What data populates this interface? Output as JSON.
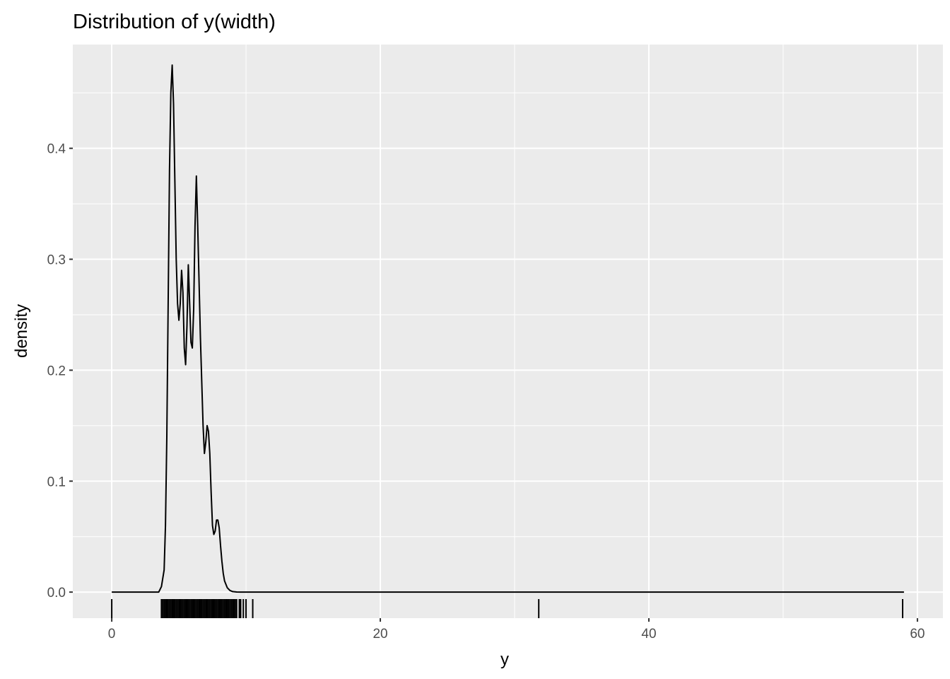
{
  "chart_data": {
    "type": "area",
    "title": "Distribution of y(width)",
    "xlabel": "y",
    "ylabel": "density",
    "xlim": [
      -2.9,
      61.9
    ],
    "ylim": [
      -0.0235,
      0.4935
    ],
    "x_ticks": [
      0,
      20,
      40,
      60
    ],
    "x_tick_labels": [
      "0",
      "20",
      "40",
      "60"
    ],
    "y_ticks": [
      0.0,
      0.1,
      0.2,
      0.3,
      0.4
    ],
    "y_tick_labels": [
      "0.0",
      "0.1",
      "0.2",
      "0.3",
      "0.4"
    ],
    "grid": true,
    "legend": "none",
    "background": "#ebebeb",
    "grid_color": "#ffffff",
    "line_color": "#000000",
    "series": [
      {
        "x": [
          0,
          3.5,
          3.7,
          3.9,
          4.0,
          4.1,
          4.2,
          4.3,
          4.4,
          4.5,
          4.6,
          4.7,
          4.8,
          4.9,
          5.0,
          5.1,
          5.2,
          5.3,
          5.4,
          5.5,
          5.6,
          5.7,
          5.8,
          5.9,
          6.0,
          6.1,
          6.2,
          6.3,
          6.4,
          6.5,
          6.6,
          6.7,
          6.8,
          6.9,
          7.0,
          7.1,
          7.2,
          7.3,
          7.4,
          7.5,
          7.6,
          7.7,
          7.8,
          7.9,
          8.0,
          8.1,
          8.2,
          8.3,
          8.4,
          8.6,
          8.8,
          9.0,
          9.3,
          9.6,
          10,
          12,
          20,
          30,
          40,
          50,
          59
        ],
        "y": [
          0,
          0,
          0.005,
          0.02,
          0.06,
          0.14,
          0.26,
          0.38,
          0.45,
          0.475,
          0.44,
          0.37,
          0.3,
          0.26,
          0.245,
          0.26,
          0.29,
          0.27,
          0.22,
          0.205,
          0.24,
          0.295,
          0.26,
          0.225,
          0.22,
          0.255,
          0.33,
          0.375,
          0.33,
          0.28,
          0.23,
          0.19,
          0.15,
          0.125,
          0.135,
          0.15,
          0.145,
          0.125,
          0.09,
          0.06,
          0.052,
          0.055,
          0.065,
          0.065,
          0.058,
          0.042,
          0.028,
          0.017,
          0.01,
          0.004,
          0.0015,
          0.0005,
          0.0001,
          0,
          0,
          0,
          0,
          0,
          0,
          0,
          0
        ]
      }
    ],
    "rug_x": [
      0,
      3.7,
      3.8,
      3.9,
      4.0,
      4.1,
      4.2,
      4.3,
      4.4,
      4.5,
      4.6,
      4.7,
      4.8,
      4.9,
      5.0,
      5.1,
      5.2,
      5.3,
      5.4,
      5.5,
      5.6,
      5.7,
      5.8,
      5.9,
      6.0,
      6.1,
      6.2,
      6.3,
      6.4,
      6.5,
      6.6,
      6.7,
      6.8,
      6.9,
      7.0,
      7.1,
      7.2,
      7.3,
      7.4,
      7.5,
      7.6,
      7.7,
      7.8,
      7.9,
      8.0,
      8.1,
      8.2,
      8.3,
      8.4,
      8.5,
      8.6,
      8.7,
      8.8,
      8.9,
      9.0,
      9.1,
      9.2,
      9.3,
      9.5,
      9.6,
      9.8,
      10.0,
      10.5,
      31.8,
      58.9
    ]
  }
}
